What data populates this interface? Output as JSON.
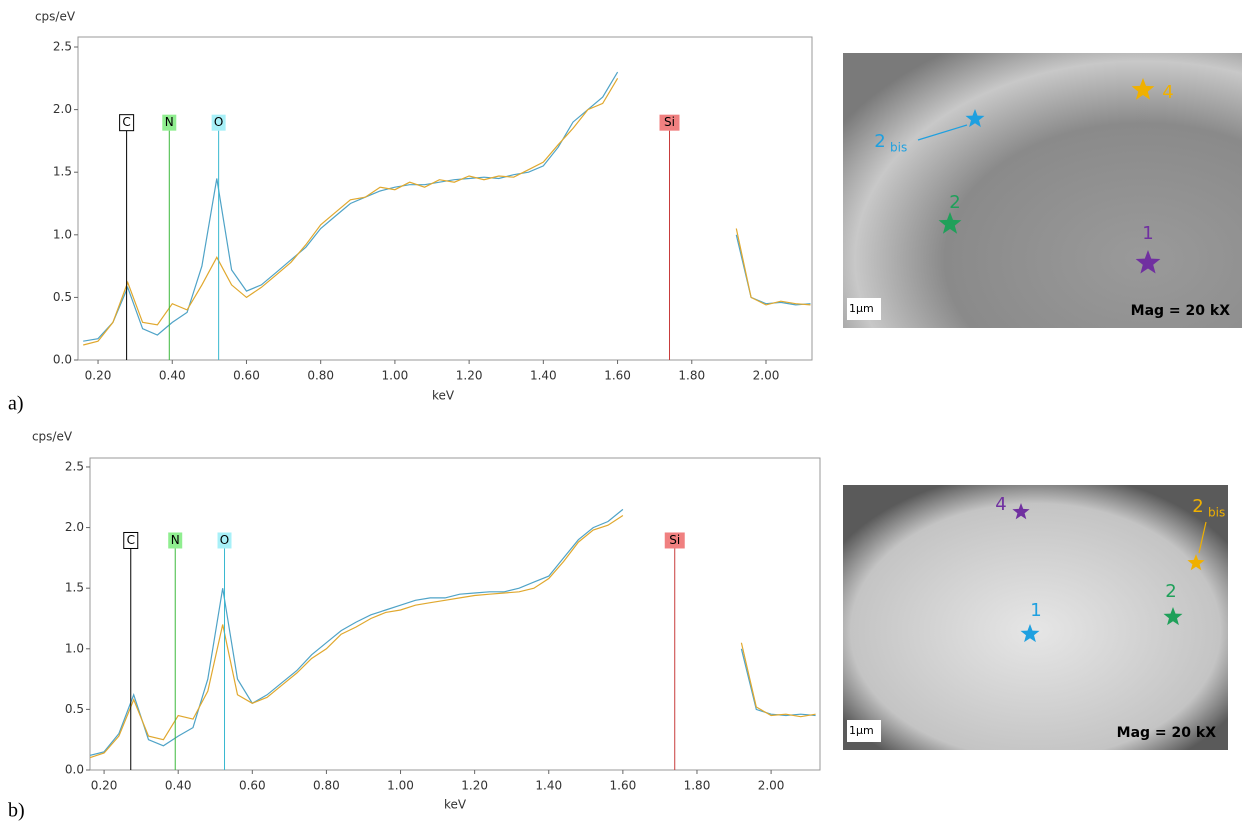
{
  "chart_data": [
    {
      "type": "line",
      "y_label": "cps/eV",
      "x_label": "keV",
      "xlim": [
        0.146,
        2.124
      ],
      "ylim": [
        0,
        2.58
      ],
      "xticks": [
        {
          "value": 0.2,
          "label": "0.20"
        },
        {
          "value": 0.4,
          "label": "0.40"
        },
        {
          "value": 0.6,
          "label": "0.60"
        },
        {
          "value": 0.8,
          "label": "0.80"
        },
        {
          "value": 1.0,
          "label": "1.00"
        },
        {
          "value": 1.2,
          "label": "1.20"
        },
        {
          "value": 1.4,
          "label": "1.40"
        },
        {
          "value": 1.6,
          "label": "1.60"
        },
        {
          "value": 1.8,
          "label": "1.80"
        },
        {
          "value": 2.0,
          "label": "2.00"
        }
      ],
      "yticks": [
        {
          "value": 0,
          "label": "0.0"
        },
        0.5,
        {
          "value": 1,
          "label": "1.0"
        },
        1.5,
        {
          "value": 2,
          "label": "2.0"
        },
        2.5
      ],
      "x": [
        0.16,
        0.2,
        0.24,
        0.28,
        0.32,
        0.36,
        0.4,
        0.44,
        0.48,
        0.52,
        0.56,
        0.6,
        0.64,
        0.68,
        0.72,
        0.76,
        0.8,
        0.84,
        0.88,
        0.92,
        0.96,
        1.0,
        1.04,
        1.08,
        1.12,
        1.16,
        1.2,
        1.24,
        1.28,
        1.32,
        1.36,
        1.4,
        1.44,
        1.48,
        1.52,
        1.56,
        1.6,
        1.64,
        1.68,
        1.72,
        1.76,
        1.8,
        1.84,
        1.88,
        1.92,
        1.96,
        2.0,
        2.04,
        2.08,
        2.12
      ],
      "series": [
        {
          "color": "#4fa3c7",
          "values": [
            0.15,
            0.17,
            0.3,
            0.58,
            0.25,
            0.2,
            0.3,
            0.38,
            0.75,
            1.45,
            0.72,
            0.55,
            0.6,
            0.7,
            0.8,
            0.9,
            1.05,
            1.15,
            1.25,
            1.3,
            1.35,
            1.38,
            1.4,
            1.4,
            1.42,
            1.44,
            1.45,
            1.46,
            1.45,
            1.48,
            1.5,
            1.55,
            1.7,
            1.9,
            2.0,
            2.1,
            2.3,
            null,
            null,
            null,
            null,
            null,
            null,
            null,
            1.0,
            0.5,
            0.45,
            0.46,
            0.44,
            0.45
          ]
        },
        {
          "color": "#e0a82e",
          "values": [
            0.12,
            0.15,
            0.3,
            0.62,
            0.3,
            0.28,
            0.45,
            0.4,
            0.6,
            0.82,
            0.6,
            0.5,
            0.58,
            0.68,
            0.78,
            0.92,
            1.08,
            1.18,
            1.28,
            1.3,
            1.38,
            1.36,
            1.42,
            1.38,
            1.44,
            1.42,
            1.47,
            1.44,
            1.47,
            1.46,
            1.52,
            1.58,
            1.72,
            1.85,
            2.0,
            2.05,
            2.25,
            null,
            null,
            null,
            null,
            null,
            null,
            null,
            1.05,
            0.5,
            0.44,
            0.47,
            0.45,
            0.44
          ]
        }
      ],
      "elements": [
        {
          "label": "C",
          "x": 0.277,
          "color": "#000000",
          "fill": "#ffffff"
        },
        {
          "label": "N",
          "x": 0.392,
          "color": "#3cb83c",
          "fill": "#90ee90"
        },
        {
          "label": "O",
          "x": 0.525,
          "color": "#38b8d0",
          "fill": "#a8f0f8"
        },
        {
          "label": "Si",
          "x": 1.74,
          "color": "#c83c3c",
          "fill": "#f08080"
        }
      ]
    },
    {
      "type": "line",
      "y_label": "cps/eV",
      "x_label": "keV",
      "xlim": [
        0.162,
        2.132
      ],
      "ylim": [
        0,
        2.574
      ],
      "xticks": [
        {
          "value": 0.2,
          "label": "0.20"
        },
        {
          "value": 0.4,
          "label": "0.40"
        },
        {
          "value": 0.6,
          "label": "0.60"
        },
        {
          "value": 0.8,
          "label": "0.80"
        },
        {
          "value": 1.0,
          "label": "1.00"
        },
        {
          "value": 1.2,
          "label": "1.20"
        },
        {
          "value": 1.4,
          "label": "1.40"
        },
        {
          "value": 1.6,
          "label": "1.60"
        },
        {
          "value": 1.8,
          "label": "1.80"
        },
        {
          "value": 2.0,
          "label": "2.00"
        }
      ],
      "yticks": [
        {
          "value": 0,
          "label": "0.0"
        },
        0.5,
        {
          "value": 1,
          "label": "1.0"
        },
        1.5,
        {
          "value": 2,
          "label": "2.0"
        },
        2.5
      ],
      "x": [
        0.16,
        0.2,
        0.24,
        0.28,
        0.32,
        0.36,
        0.4,
        0.44,
        0.48,
        0.52,
        0.56,
        0.6,
        0.64,
        0.68,
        0.72,
        0.76,
        0.8,
        0.84,
        0.88,
        0.92,
        0.96,
        1.0,
        1.04,
        1.08,
        1.12,
        1.16,
        1.2,
        1.24,
        1.28,
        1.32,
        1.36,
        1.4,
        1.44,
        1.48,
        1.52,
        1.56,
        1.6,
        1.64,
        1.68,
        1.72,
        1.76,
        1.8,
        1.84,
        1.88,
        1.92,
        1.96,
        2.0,
        2.04,
        2.08,
        2.12
      ],
      "series": [
        {
          "color": "#4fa3c7",
          "values": [
            0.12,
            0.15,
            0.3,
            0.62,
            0.25,
            0.2,
            0.28,
            0.35,
            0.75,
            1.5,
            0.75,
            0.55,
            0.62,
            0.72,
            0.82,
            0.95,
            1.05,
            1.15,
            1.22,
            1.28,
            1.32,
            1.36,
            1.4,
            1.42,
            1.42,
            1.45,
            1.46,
            1.47,
            1.47,
            1.5,
            1.55,
            1.6,
            1.75,
            1.9,
            2.0,
            2.05,
            2.15,
            null,
            null,
            null,
            null,
            null,
            null,
            null,
            1.0,
            0.5,
            0.46,
            0.45,
            0.46,
            0.45
          ]
        },
        {
          "color": "#e0a82e",
          "values": [
            0.1,
            0.14,
            0.28,
            0.58,
            0.28,
            0.25,
            0.45,
            0.42,
            0.65,
            1.2,
            0.62,
            0.55,
            0.6,
            0.7,
            0.8,
            0.92,
            1.0,
            1.12,
            1.18,
            1.25,
            1.3,
            1.32,
            1.36,
            1.38,
            1.4,
            1.42,
            1.44,
            1.45,
            1.46,
            1.47,
            1.5,
            1.58,
            1.72,
            1.88,
            1.98,
            2.02,
            2.1,
            null,
            null,
            null,
            null,
            null,
            null,
            null,
            1.05,
            0.52,
            0.45,
            0.46,
            0.44,
            0.46
          ]
        }
      ],
      "elements": [
        {
          "label": "C",
          "x": 0.272,
          "color": "#000000",
          "fill": "#ffffff"
        },
        {
          "label": "N",
          "x": 0.392,
          "color": "#3cb83c",
          "fill": "#90ee90"
        },
        {
          "label": "O",
          "x": 0.525,
          "color": "#38b8d0",
          "fill": "#a8f0f8"
        },
        {
          "label": "Si",
          "x": 1.74,
          "color": "#c83c3c",
          "fill": "#f08080"
        }
      ]
    }
  ],
  "panel_labels": [
    "a)",
    "b)"
  ],
  "images": [
    {
      "scale_bar": "1µm",
      "magnification": "Mag = 20 kX",
      "points": [
        {
          "label": "1",
          "color": "#7030a0"
        },
        {
          "label": "2",
          "color": "#1fa05a"
        },
        {
          "label": "2",
          "subscript": "bis",
          "color": "#1ea0e0"
        },
        {
          "label": "4",
          "color": "#f0b000"
        }
      ]
    },
    {
      "scale_bar": "1µm",
      "magnification": "Mag = 20 kX",
      "points": [
        {
          "label": "1",
          "color": "#1ea0e0"
        },
        {
          "label": "2",
          "color": "#1fa05a"
        },
        {
          "label": "2",
          "subscript": "bis",
          "color": "#f0b000"
        },
        {
          "label": "4",
          "color": "#7030a0"
        }
      ]
    }
  ]
}
